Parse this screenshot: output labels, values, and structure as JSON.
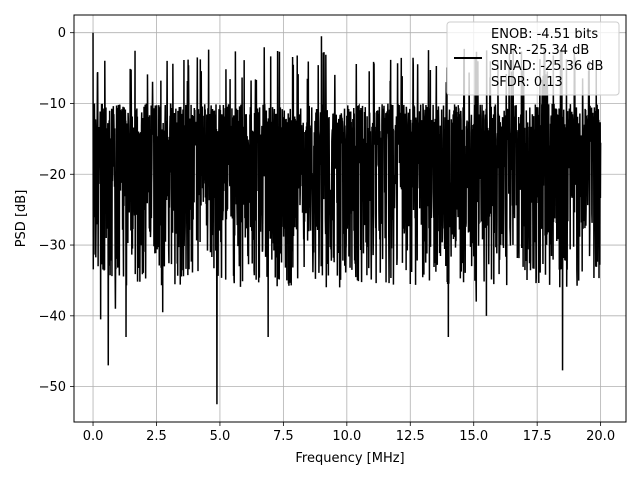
{
  "chart_data": {
    "type": "line",
    "title": "",
    "xlabel": "Frequency [MHz]",
    "ylabel": "PSD [dB]",
    "xlim": [
      -0.75,
      21.0
    ],
    "ylim": [
      -55,
      2.5
    ],
    "xticks": [
      0.0,
      2.5,
      5.0,
      7.5,
      10.0,
      12.5,
      15.0,
      17.5,
      20.0
    ],
    "xtick_labels": [
      "0.0",
      "2.5",
      "5.0",
      "7.5",
      "10.0",
      "12.5",
      "15.0",
      "17.5",
      "20.0"
    ],
    "yticks": [
      0,
      -10,
      -20,
      -30,
      -40,
      -50
    ],
    "ytick_labels": [
      "0",
      "−10",
      "−20",
      "−30",
      "−40",
      "−50"
    ],
    "grid": true,
    "legend_position": "top-right",
    "legend_entries": [
      "ENOB: -4.51 bits",
      "SNR: -25.34 dB",
      "SINAD: -25.36 dB",
      "SFDR: 0.13"
    ],
    "series_color": "#000000",
    "x_range": [
      0.0,
      20.0
    ],
    "noise_band": [
      -28,
      -10
    ],
    "series": [
      {
        "x": [
          0.0,
          0.05,
          0.12,
          0.2,
          0.3,
          0.45,
          0.52,
          0.6,
          0.88,
          1.3,
          2.75,
          4.88,
          6.9,
          9.0,
          14.0,
          15.1,
          15.5,
          18.5,
          19.8
        ],
        "values": [
          0.0,
          -10.0,
          -27.0,
          -33.0,
          -40.5,
          -33.5,
          -29.0,
          -47.0,
          -39.0,
          -43.0,
          -39.5,
          -52.5,
          -43.0,
          -0.5,
          -43.0,
          -38.0,
          -40.0,
          -47.7,
          -26.0
        ]
      }
    ]
  }
}
